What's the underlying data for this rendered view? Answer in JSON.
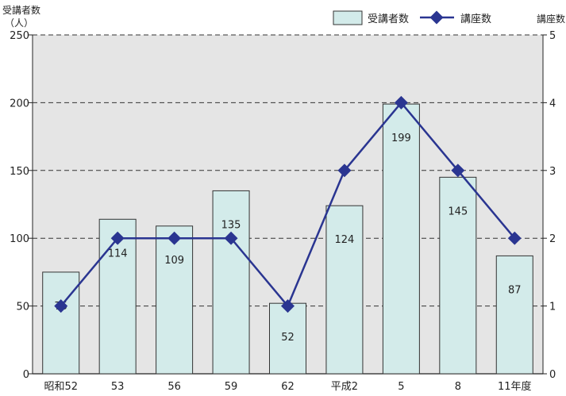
{
  "chart_data": {
    "type": "bar",
    "categories": [
      "昭和52",
      "53",
      "56",
      "59",
      "62",
      "平成2",
      "5",
      "8",
      "11年度"
    ],
    "series": [
      {
        "name": "受講者数",
        "type": "bar",
        "axis": "left",
        "values": [
          75,
          114,
          109,
          135,
          52,
          124,
          199,
          145,
          87
        ],
        "color": "#d3ebea"
      },
      {
        "name": "講座数",
        "type": "line",
        "axis": "right",
        "values": [
          1,
          2,
          2,
          2,
          1,
          3,
          4,
          3,
          2
        ],
        "color": "#2a3591"
      }
    ],
    "y_left": {
      "label_line1": "受講者数",
      "label_line2": "（人）",
      "ylim": [
        0,
        250
      ],
      "ticks": [
        "0",
        "50",
        "100",
        "150",
        "200",
        "250"
      ]
    },
    "y_right": {
      "label": "講座数",
      "ylim": [
        0,
        5
      ],
      "ticks": [
        "0",
        "1",
        "2",
        "3",
        "4",
        "5"
      ]
    },
    "grid": true,
    "legend": "top-right",
    "plot_background": "#e5e5e5"
  }
}
